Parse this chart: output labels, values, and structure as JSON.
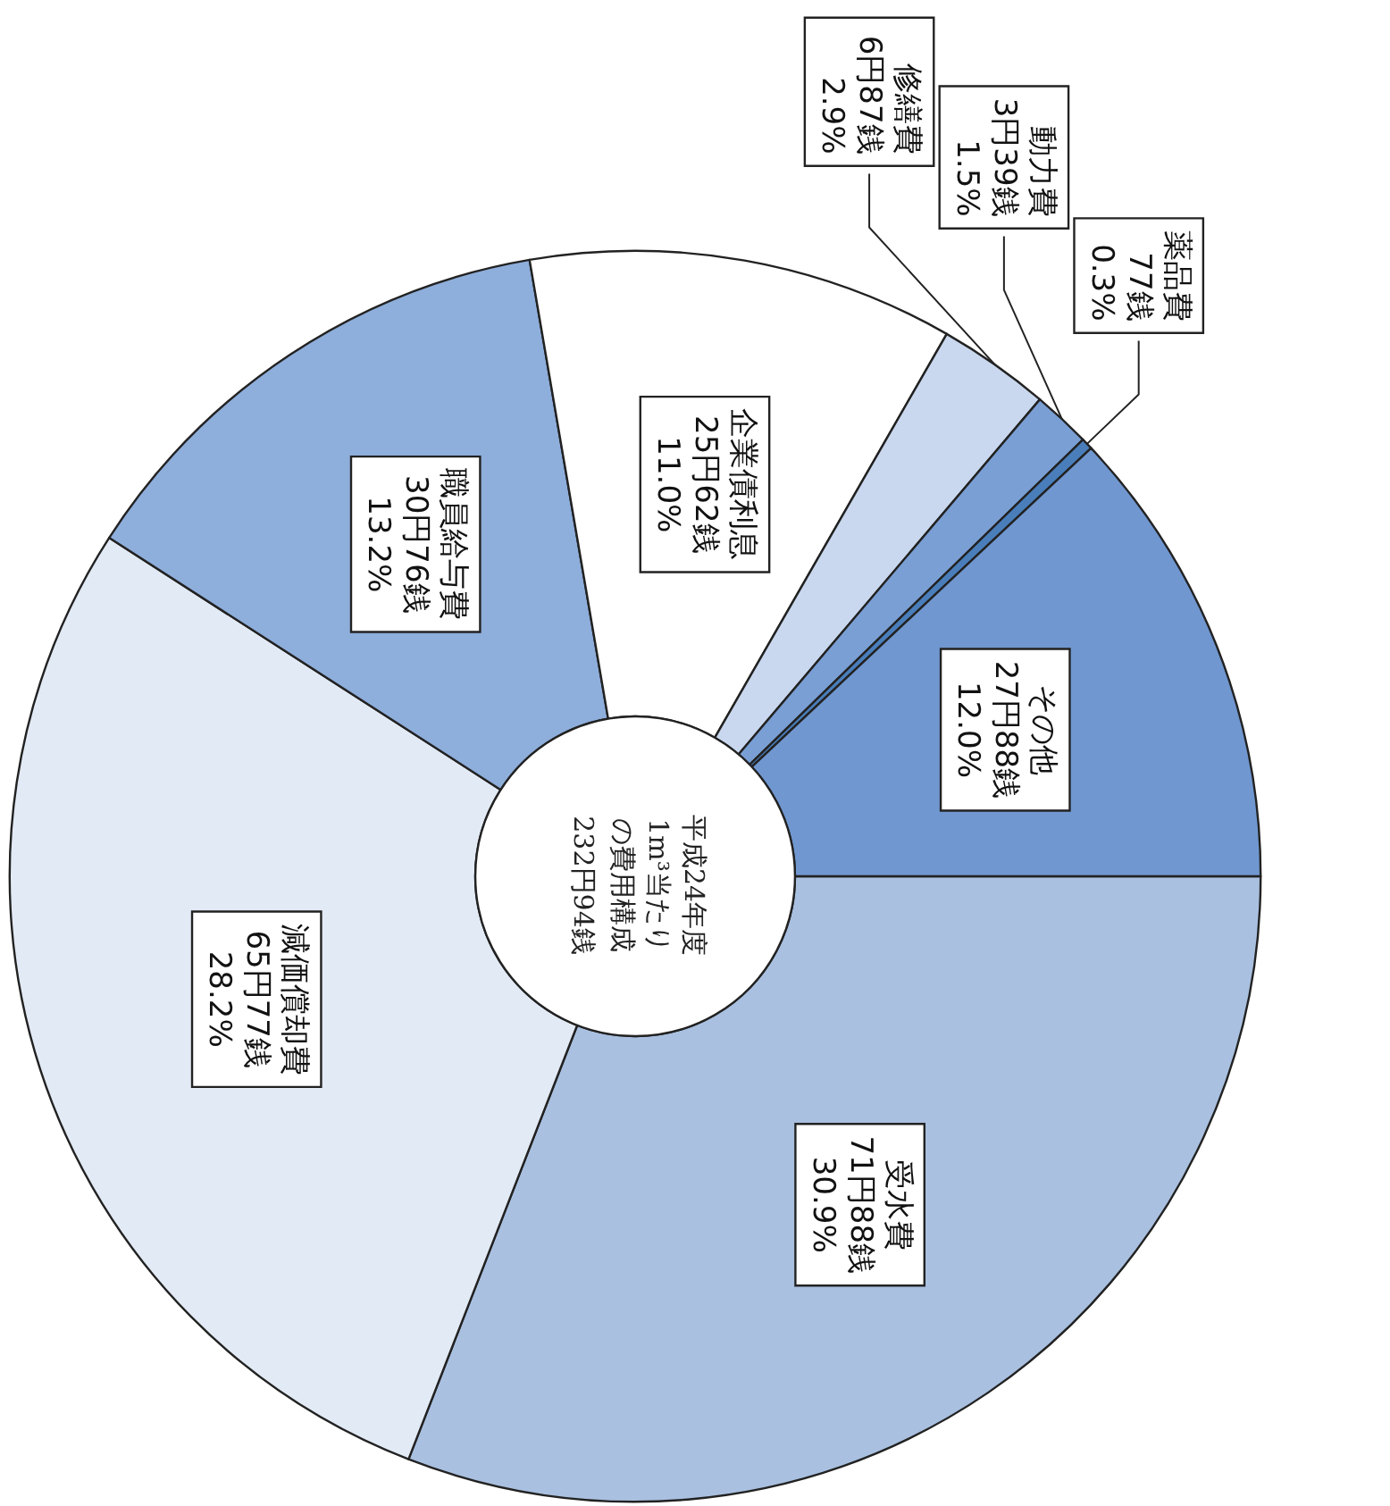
{
  "chart_data": {
    "type": "donut",
    "title": "平成24年度1m³当たりの費用構成",
    "subtitle": "232円94銭",
    "categories": [
      "受水費",
      "減価償却費",
      "職員給与費",
      "企業債利息",
      "修繕費",
      "動力費",
      "薬品費",
      "その他"
    ],
    "values": [
      30.9,
      28.2,
      13.2,
      11.0,
      2.9,
      1.5,
      0.3,
      12.0
    ],
    "colors": [
      "#a9c0e0",
      "#e2eaf5",
      "#8eaedb",
      "#ffffff",
      "#c9d8ee",
      "#7a9fd4",
      "#4a7ebb",
      "#7097cf"
    ],
    "value_labels": [
      "71円88銭\n30.9%",
      "65円77銭\n28.2%",
      "30円76銭\n13.2%",
      "25円62銭\n11.0%",
      "6円87銭\n2.9%",
      "3円39銭\n1.5%",
      "77銭\n0.3%",
      "27円88銭\n12.0%"
    ]
  }
}
